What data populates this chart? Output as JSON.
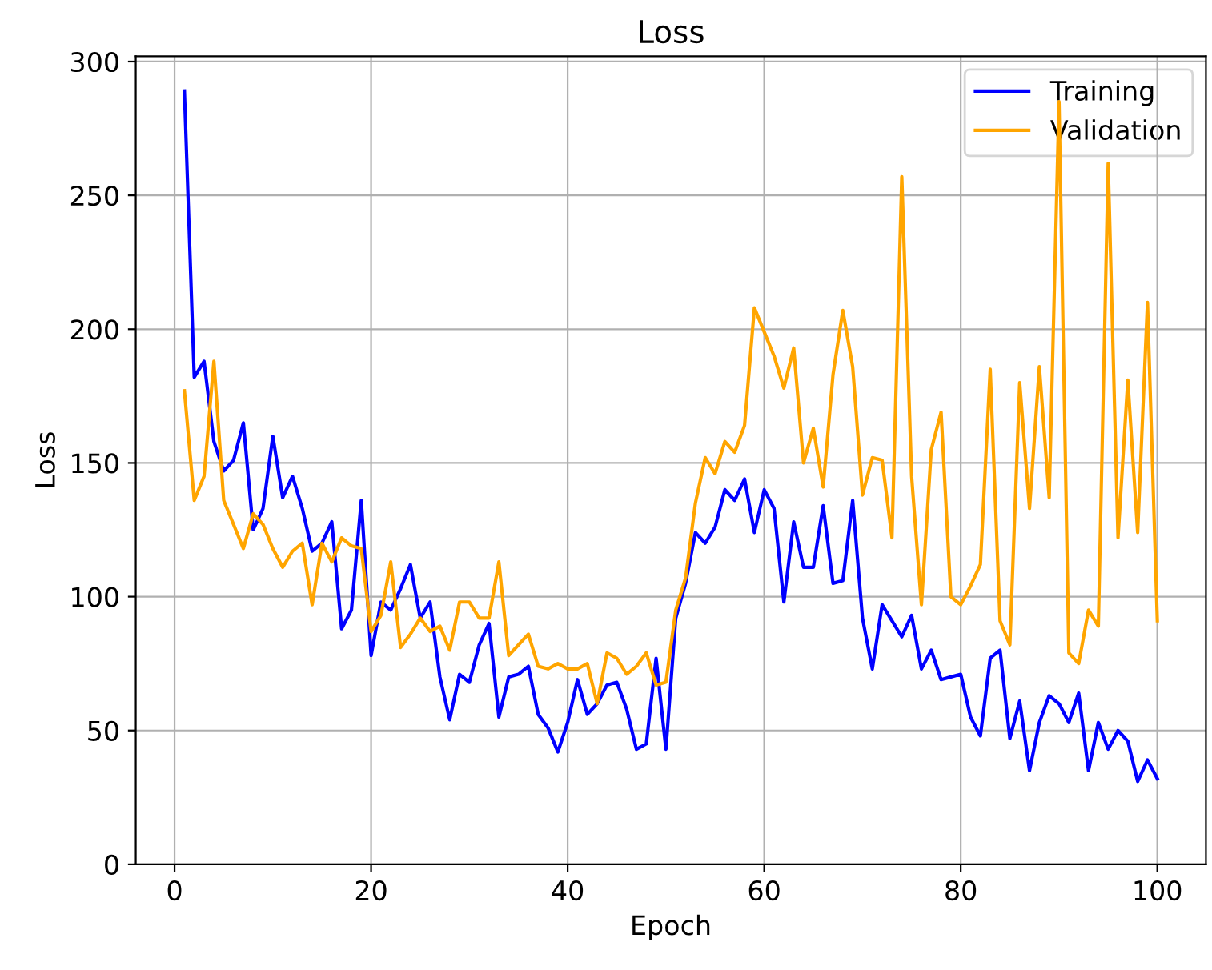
{
  "chart_data": {
    "type": "line",
    "title": "Loss",
    "xlabel": "Epoch",
    "ylabel": "Loss",
    "x": [
      1,
      2,
      3,
      4,
      5,
      6,
      7,
      8,
      9,
      10,
      11,
      12,
      13,
      14,
      15,
      16,
      17,
      18,
      19,
      20,
      21,
      22,
      23,
      24,
      25,
      26,
      27,
      28,
      29,
      30,
      31,
      32,
      33,
      34,
      35,
      36,
      37,
      38,
      39,
      40,
      41,
      42,
      43,
      44,
      45,
      46,
      47,
      48,
      49,
      50,
      51,
      52,
      53,
      54,
      55,
      56,
      57,
      58,
      59,
      60,
      61,
      62,
      63,
      64,
      65,
      66,
      67,
      68,
      69,
      70,
      71,
      72,
      73,
      74,
      75,
      76,
      77,
      78,
      79,
      80,
      81,
      82,
      83,
      84,
      85,
      86,
      87,
      88,
      89,
      90,
      91,
      92,
      93,
      94,
      95,
      96,
      97,
      98,
      99,
      100
    ],
    "series": [
      {
        "name": "Training",
        "color": "#0000ff",
        "values": [
          289,
          182,
          188,
          158,
          147,
          151,
          165,
          125,
          133,
          160,
          137,
          145,
          133,
          117,
          120,
          128,
          88,
          95,
          136,
          78,
          98,
          95,
          103,
          112,
          92,
          98,
          70,
          54,
          71,
          68,
          82,
          90,
          55,
          70,
          71,
          74,
          56,
          51,
          42,
          53,
          69,
          56,
          60,
          67,
          68,
          58,
          43,
          45,
          77,
          43,
          92,
          105,
          124,
          120,
          126,
          140,
          136,
          144,
          124,
          140,
          133,
          98,
          128,
          111,
          111,
          134,
          105,
          106,
          136,
          92,
          73,
          97,
          91,
          85,
          93,
          73,
          80,
          69,
          70,
          71,
          55,
          48,
          77,
          80,
          47,
          61,
          35,
          53,
          63,
          60,
          53,
          64,
          35,
          53,
          43,
          50,
          46,
          31,
          39,
          32
        ]
      },
      {
        "name": "Validation",
        "color": "#ffa500",
        "values": [
          177,
          136,
          145,
          188,
          136,
          127,
          118,
          131,
          127,
          118,
          111,
          117,
          120,
          97,
          120,
          113,
          122,
          119,
          118,
          87,
          93,
          113,
          81,
          86,
          92,
          87,
          89,
          80,
          98,
          98,
          92,
          92,
          113,
          78,
          82,
          86,
          74,
          73,
          75,
          73,
          73,
          75,
          60,
          79,
          77,
          71,
          74,
          79,
          67,
          68,
          95,
          107,
          135,
          152,
          146,
          158,
          154,
          164,
          208,
          199,
          190,
          178,
          193,
          150,
          163,
          141,
          183,
          207,
          186,
          138,
          152,
          151,
          122,
          257,
          145,
          97,
          155,
          169,
          100,
          97,
          104,
          112,
          185,
          91,
          82,
          180,
          133,
          186,
          137,
          285,
          79,
          75,
          95,
          89,
          262,
          122,
          181,
          124,
          210,
          91
        ]
      }
    ],
    "xlim": [
      -3.95,
      104.95
    ],
    "xticks": [
      0,
      20,
      40,
      60,
      80,
      100
    ],
    "ylim": [
      0,
      302
    ],
    "yticks": [
      0,
      50,
      100,
      150,
      200,
      250,
      300
    ],
    "grid": true,
    "legend": "top right",
    "line_style": "solid",
    "marker": "none"
  }
}
